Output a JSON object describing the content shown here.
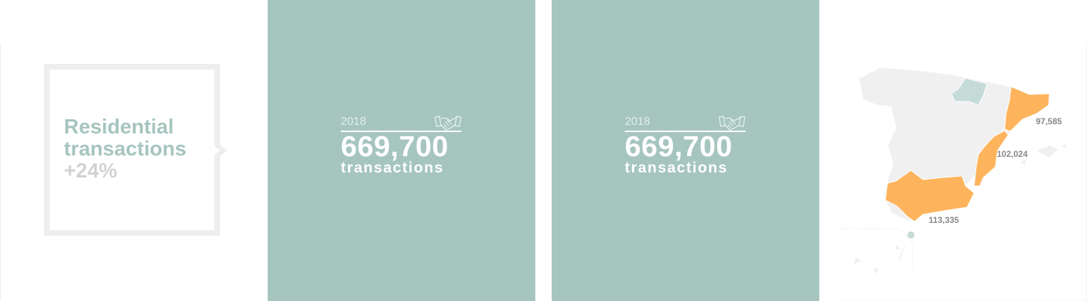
{
  "callout": {
    "line1": "Residential",
    "line2": "transactions",
    "change": "+24%"
  },
  "panels": [
    {
      "year": "2018",
      "value": "669,700",
      "unit": "transactions",
      "icon": "handshake-icon"
    },
    {
      "year": "2018",
      "value": "669,700",
      "unit": "transactions",
      "icon": "handshake-icon"
    }
  ],
  "map": {
    "colors": {
      "highlight": "#fdb45c",
      "accent": "#c5dbd7",
      "base": "#f0f0f0",
      "panel": "#a6c5bf"
    },
    "regions": [
      {
        "name": "Catalonia",
        "label": "97,585"
      },
      {
        "name": "Valencia",
        "label": "102,024"
      },
      {
        "name": "Andalusia",
        "label": "113,335"
      }
    ]
  }
}
